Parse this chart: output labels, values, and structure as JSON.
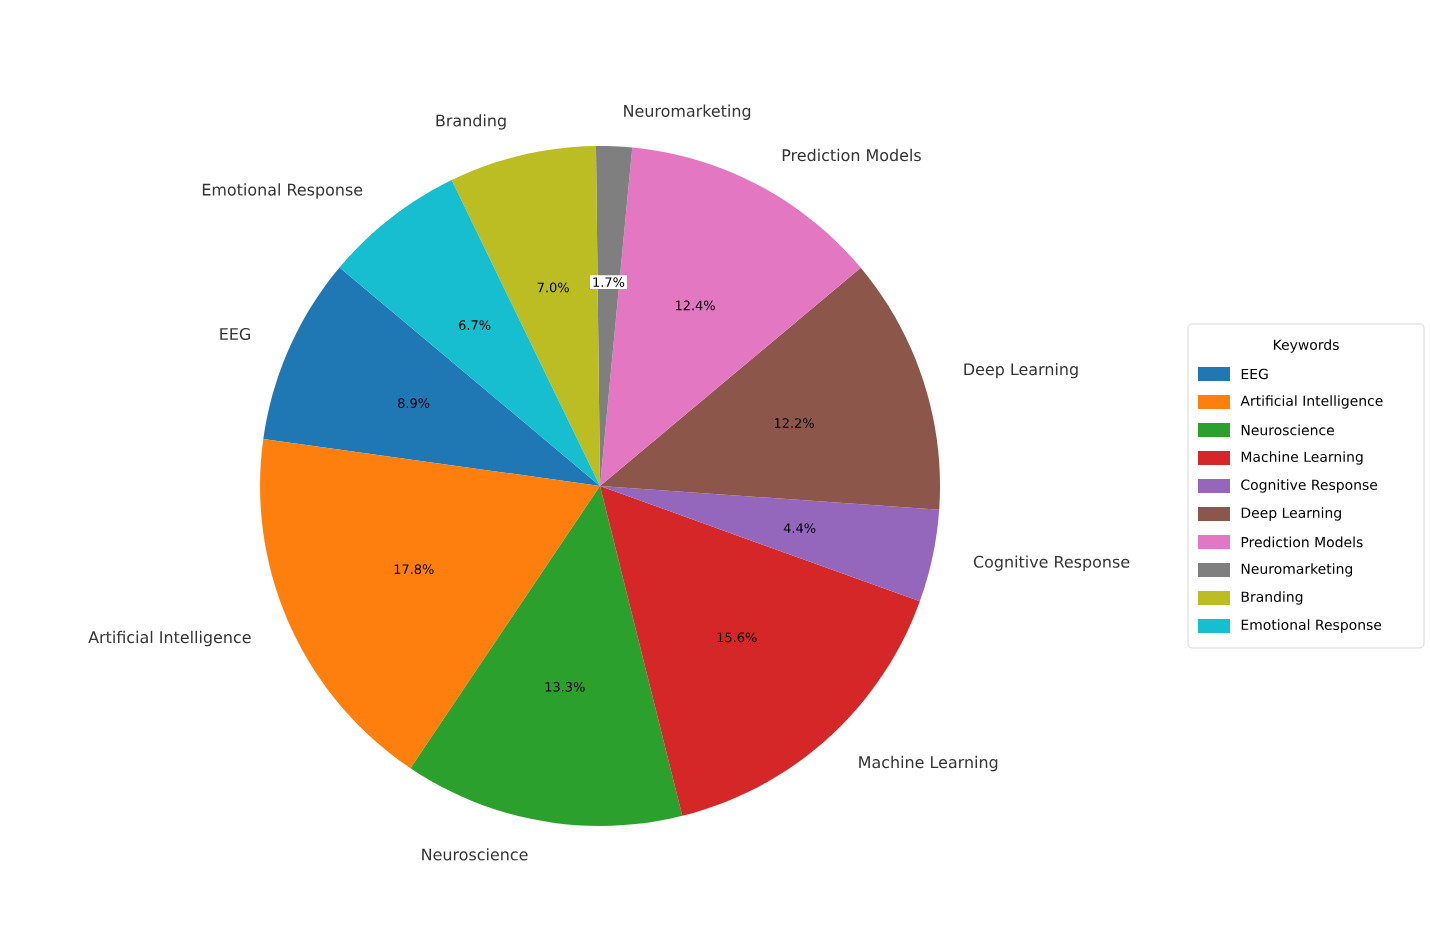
{
  "chart_data": {
    "type": "pie",
    "categories": [
      "EEG",
      "Artificial Intelligence",
      "Neuroscience",
      "Machine Learning",
      "Cognitive Response",
      "Deep Learning",
      "Prediction Models",
      "Neuromarketing",
      "Branding",
      "Emotional Response"
    ],
    "values": [
      8.9,
      17.8,
      13.3,
      15.6,
      4.4,
      12.2,
      12.4,
      1.7,
      7.0,
      6.7
    ],
    "value_labels": [
      "8.9%",
      "17.8%",
      "13.3%",
      "15.6%",
      "4.4%",
      "12.2%",
      "12.4%",
      "1.7%",
      "7.0%",
      "6.7%"
    ],
    "colors": [
      "#1f77b4",
      "#ff7f0e",
      "#2ca02c",
      "#d62728",
      "#9467bd",
      "#8c564b",
      "#e377c2",
      "#7f7f7f",
      "#bcbd22",
      "#17becf"
    ],
    "legend": "right",
    "legend_title": "Keywords"
  }
}
